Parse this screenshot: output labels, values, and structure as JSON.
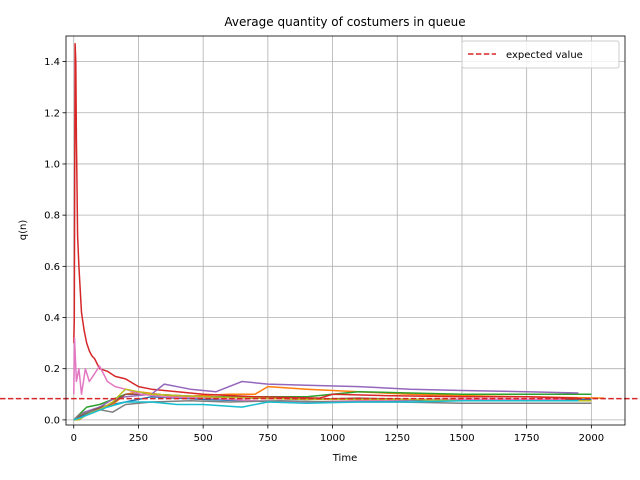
{
  "chart_data": {
    "type": "line",
    "title": "Average quantity of costumers in queue",
    "xlabel": "Time",
    "ylabel": "q(n)",
    "xlim": [
      -30,
      2130
    ],
    "ylim": [
      -0.02,
      1.5
    ],
    "xticks": [
      0,
      250,
      500,
      750,
      1000,
      1250,
      1500,
      1750,
      2000
    ],
    "yticks": [
      0.0,
      0.2,
      0.4,
      0.6,
      0.8,
      1.0,
      1.2,
      1.4
    ],
    "grid": true,
    "legend_position": "top-right",
    "reference_line": {
      "name": "expected value",
      "y": 0.0833,
      "color": "#d62728",
      "style": "dashed"
    },
    "series": [
      {
        "color": "#1f77b4",
        "x": [
          0,
          20,
          60,
          100,
          150,
          200,
          300,
          400,
          500,
          650,
          800,
          1000,
          1250,
          1500,
          1750,
          2000
        ],
        "values": [
          0.0,
          0.01,
          0.03,
          0.05,
          0.06,
          0.07,
          0.09,
          0.085,
          0.08,
          0.075,
          0.07,
          0.07,
          0.075,
          0.08,
          0.08,
          0.08
        ]
      },
      {
        "color": "#ff7f0e",
        "x": [
          0,
          30,
          80,
          150,
          200,
          250,
          400,
          600,
          700,
          750,
          900,
          1100,
          1300,
          1500,
          1750,
          2050
        ],
        "values": [
          0.0,
          0.02,
          0.04,
          0.06,
          0.1,
          0.11,
          0.09,
          0.1,
          0.1,
          0.13,
          0.12,
          0.11,
          0.1,
          0.095,
          0.09,
          0.085
        ]
      },
      {
        "color": "#2ca02c",
        "x": [
          0,
          20,
          50,
          100,
          150,
          200,
          300,
          500,
          700,
          900,
          1100,
          1300,
          1500,
          1750,
          2000
        ],
        "values": [
          0.0,
          0.02,
          0.05,
          0.06,
          0.08,
          0.1,
          0.1,
          0.09,
          0.09,
          0.09,
          0.11,
          0.105,
          0.1,
          0.1,
          0.1
        ]
      },
      {
        "color": "#d62728",
        "x": [
          0,
          2,
          5,
          8,
          10,
          12,
          15,
          20,
          30,
          40,
          50,
          60,
          70,
          80,
          100,
          130,
          160,
          200,
          250,
          300,
          400,
          500,
          700,
          950,
          1000,
          1200,
          1500,
          1750,
          1950
        ],
        "values": [
          0.3,
          0.4,
          1.47,
          1.4,
          1.1,
          0.95,
          0.72,
          0.6,
          0.42,
          0.35,
          0.3,
          0.27,
          0.25,
          0.24,
          0.2,
          0.19,
          0.17,
          0.16,
          0.13,
          0.12,
          0.11,
          0.1,
          0.09,
          0.085,
          0.1,
          0.095,
          0.09,
          0.09,
          0.085
        ]
      },
      {
        "color": "#9467bd",
        "x": [
          0,
          40,
          100,
          150,
          200,
          300,
          350,
          450,
          550,
          650,
          750,
          900,
          1100,
          1300,
          1500,
          1750,
          1950
        ],
        "values": [
          0.0,
          0.03,
          0.05,
          0.08,
          0.09,
          0.1,
          0.14,
          0.12,
          0.11,
          0.15,
          0.14,
          0.135,
          0.13,
          0.12,
          0.115,
          0.11,
          0.105
        ]
      },
      {
        "color": "#8c564b",
        "x": [
          0,
          30,
          80,
          140,
          200,
          300,
          500,
          700,
          900,
          1100,
          1300,
          1500,
          1750,
          1950
        ],
        "values": [
          0.0,
          0.02,
          0.04,
          0.06,
          0.1,
          0.1,
          0.09,
          0.085,
          0.08,
          0.085,
          0.08,
          0.08,
          0.08,
          0.08
        ]
      },
      {
        "color": "#e377c2",
        "x": [
          0,
          3,
          6,
          10,
          20,
          30,
          45,
          60,
          80,
          100,
          130,
          160,
          200,
          260,
          350,
          500,
          700,
          900,
          1100,
          1400,
          1700,
          1900
        ],
        "values": [
          0.1,
          0.32,
          0.25,
          0.15,
          0.2,
          0.1,
          0.2,
          0.15,
          0.18,
          0.21,
          0.15,
          0.13,
          0.12,
          0.1,
          0.09,
          0.085,
          0.075,
          0.07,
          0.075,
          0.08,
          0.08,
          0.08
        ]
      },
      {
        "color": "#7f7f7f",
        "x": [
          0,
          20,
          50,
          100,
          150,
          200,
          300,
          450,
          600,
          800,
          1000,
          1250,
          1500,
          1750,
          2000
        ],
        "values": [
          0.0,
          0.02,
          0.03,
          0.04,
          0.03,
          0.06,
          0.07,
          0.075,
          0.07,
          0.075,
          0.07,
          0.07,
          0.065,
          0.065,
          0.065
        ]
      },
      {
        "color": "#bcbd22",
        "x": [
          0,
          20,
          50,
          100,
          150,
          200,
          300,
          500,
          700,
          900,
          1100,
          1300,
          1500,
          1750,
          2000
        ],
        "values": [
          0.0,
          0.0,
          0.02,
          0.04,
          0.07,
          0.12,
          0.1,
          0.09,
          0.085,
          0.08,
          0.08,
          0.08,
          0.075,
          0.075,
          0.075
        ]
      },
      {
        "color": "#17becf",
        "x": [
          0,
          30,
          80,
          130,
          200,
          300,
          400,
          500,
          650,
          750,
          900,
          1100,
          1300,
          1500,
          1750,
          1950
        ],
        "values": [
          0.0,
          0.01,
          0.03,
          0.05,
          0.07,
          0.07,
          0.06,
          0.06,
          0.05,
          0.07,
          0.065,
          0.07,
          0.07,
          0.075,
          0.075,
          0.075
        ]
      }
    ]
  }
}
